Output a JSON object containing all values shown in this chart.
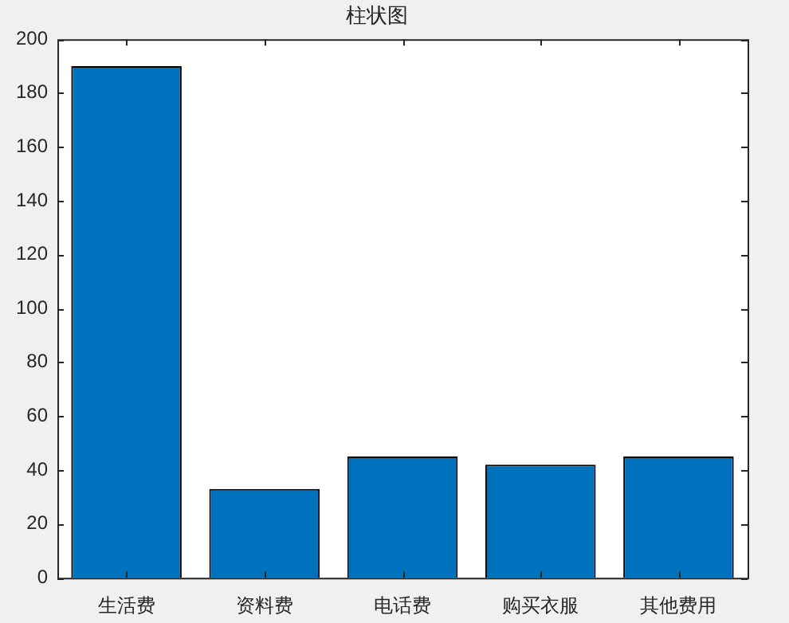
{
  "chart_data": {
    "type": "bar",
    "title": "柱状图",
    "categories": [
      "生活费",
      "资料费",
      "电话费",
      "购买衣服",
      "其他费用"
    ],
    "values": [
      190,
      33,
      45,
      42,
      45
    ],
    "color": "#0072bd",
    "ylim": [
      0,
      200
    ],
    "yticks": [
      0,
      20,
      40,
      60,
      80,
      100,
      120,
      140,
      160,
      180,
      200
    ],
    "grid": false,
    "legend": false
  }
}
